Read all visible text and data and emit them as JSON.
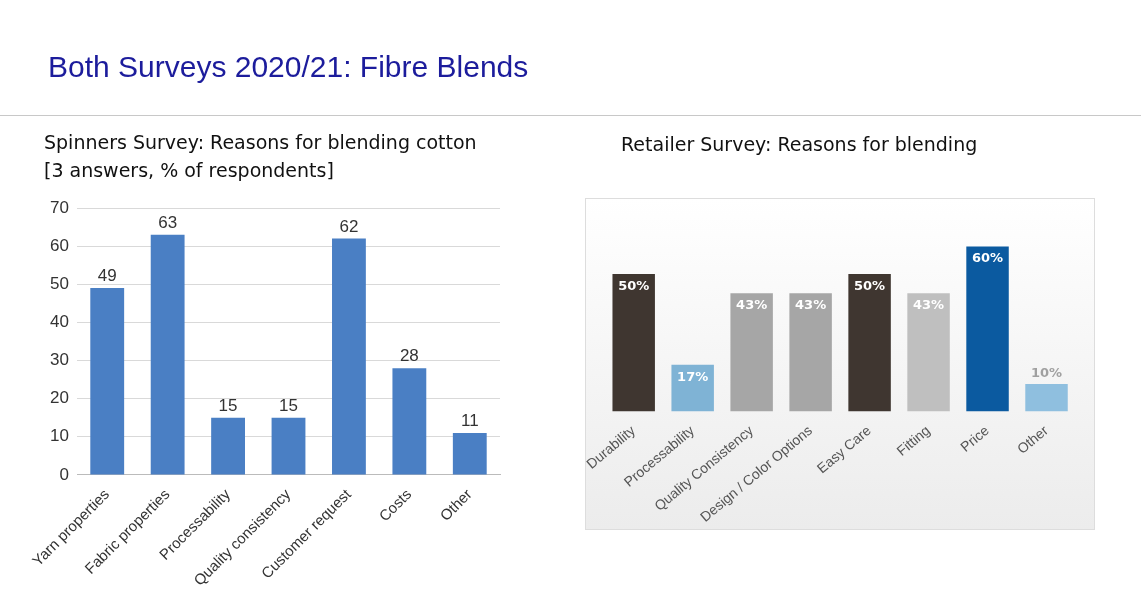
{
  "chart_data": [
    {
      "type": "bar",
      "title": "Spinners Survey: Reasons for blending cotton",
      "subtitle": "[3 answers, % of respondents]",
      "annotations": [
        "Both Surveys 2020/21: Fibre Blends"
      ],
      "categories": [
        "Yarn properties",
        "Fabric properties",
        "Processability",
        "Quality consistency",
        "Customer request",
        "Costs",
        "Other"
      ],
      "values": [
        49,
        63,
        15,
        15,
        62,
        28,
        11
      ],
      "color": "#4a7fc4",
      "ylim": [
        0,
        70
      ],
      "yticks": [
        0,
        10,
        20,
        30,
        40,
        50,
        60,
        70
      ],
      "grid": "y",
      "data_labels": true
    },
    {
      "type": "bar",
      "title": "Retailer Survey: Reasons for blending",
      "categories": [
        "Durability",
        "Processability",
        "Quality Consistency",
        "Design / Color Options",
        "Easy Care",
        "Fitting",
        "Price",
        "Other"
      ],
      "values": [
        50,
        17,
        43,
        43,
        50,
        43,
        60,
        10
      ],
      "colors": [
        "#3f3630",
        "#7fb3d5",
        "#a6a6a6",
        "#a6a6a6",
        "#3f3630",
        "#bfbfbf",
        "#0b5aa0",
        "#8fbfdf"
      ],
      "value_labels": [
        "50%",
        "17%",
        "43%",
        "43%",
        "50%",
        "43%",
        "60%",
        "10%"
      ],
      "tick_labels": "x"
    }
  ]
}
